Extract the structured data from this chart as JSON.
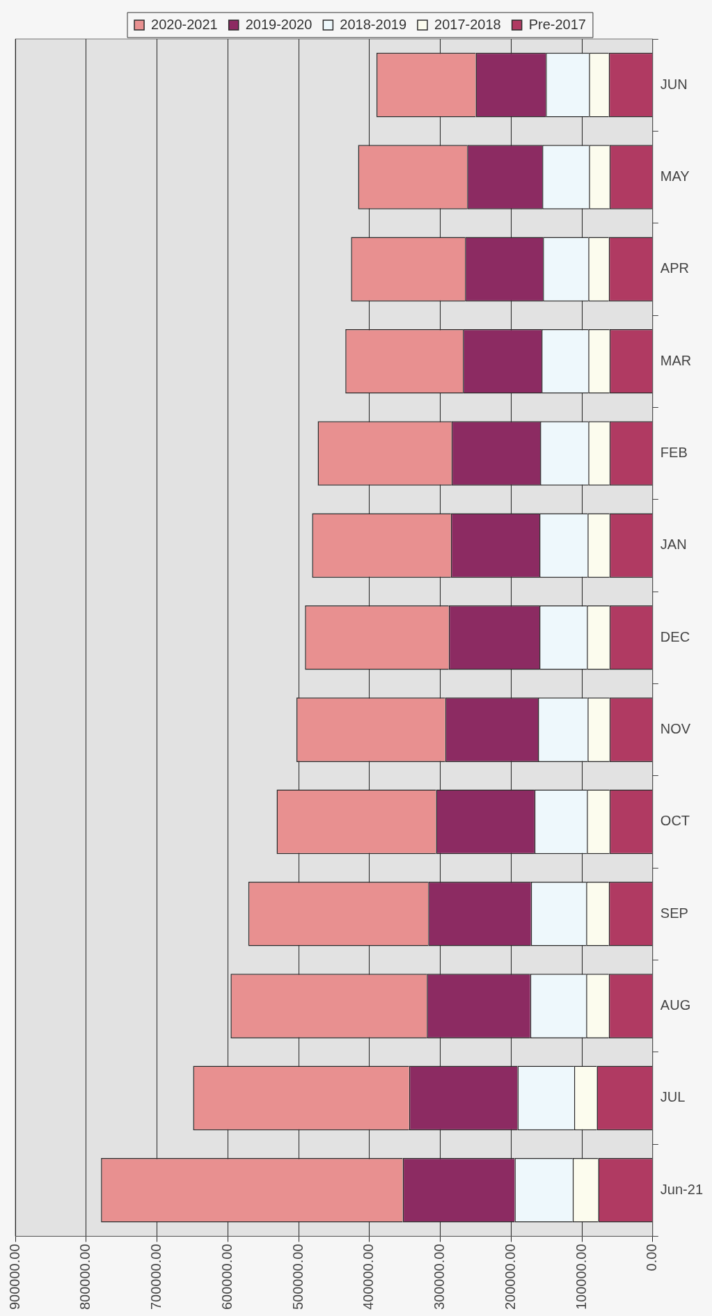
{
  "chart_data": {
    "type": "bar",
    "stacked": true,
    "orientation": "horizontal",
    "categories": [
      "JUN",
      "MAY",
      "APR",
      "MAR",
      "FEB",
      "JAN",
      "DEC",
      "NOV",
      "OCT",
      "SEP",
      "AUG",
      "JUL",
      "Jun-21"
    ],
    "series": [
      {
        "name": "Pre-2017",
        "color": "#b03a62",
        "values": [
          62000,
          61000,
          62000,
          61000,
          61000,
          61000,
          61000,
          61000,
          61000,
          62000,
          62000,
          79000,
          77000
        ]
      },
      {
        "name": "2017-2018",
        "color": "#fcfcee",
        "values": [
          28000,
          29000,
          29000,
          30000,
          30000,
          31000,
          32000,
          31000,
          32000,
          32000,
          32000,
          32000,
          36000
        ]
      },
      {
        "name": "2018-2019",
        "color": "#eef8fc",
        "values": [
          61000,
          66000,
          64000,
          66000,
          68000,
          68000,
          67000,
          70000,
          74000,
          78000,
          79000,
          80000,
          82000
        ]
      },
      {
        "name": "2019-2020",
        "color": "#8c2b62",
        "values": [
          99000,
          106000,
          110000,
          111000,
          125000,
          125000,
          128000,
          131000,
          139000,
          145000,
          146000,
          153000,
          158000
        ]
      },
      {
        "name": "2020-2021",
        "color": "#e89090",
        "values": [
          140000,
          154000,
          161000,
          166000,
          189000,
          196000,
          203000,
          210000,
          225000,
          254000,
          277000,
          305000,
          426000
        ]
      }
    ],
    "xlim": [
      900000,
      0
    ],
    "xticks": [
      {
        "value": 900000,
        "label": "900000.00"
      },
      {
        "value": 800000,
        "label": "800000.00"
      },
      {
        "value": 700000,
        "label": "700000.00"
      },
      {
        "value": 600000,
        "label": "600000.00"
      },
      {
        "value": 500000,
        "label": "500000.00"
      },
      {
        "value": 400000,
        "label": "400000.00"
      },
      {
        "value": 300000,
        "label": "300000.00"
      },
      {
        "value": 200000,
        "label": "200000.00"
      },
      {
        "value": 100000,
        "label": "100000.00"
      },
      {
        "value": 0,
        "label": "0.00"
      }
    ],
    "grid": "x",
    "legend": "top"
  }
}
